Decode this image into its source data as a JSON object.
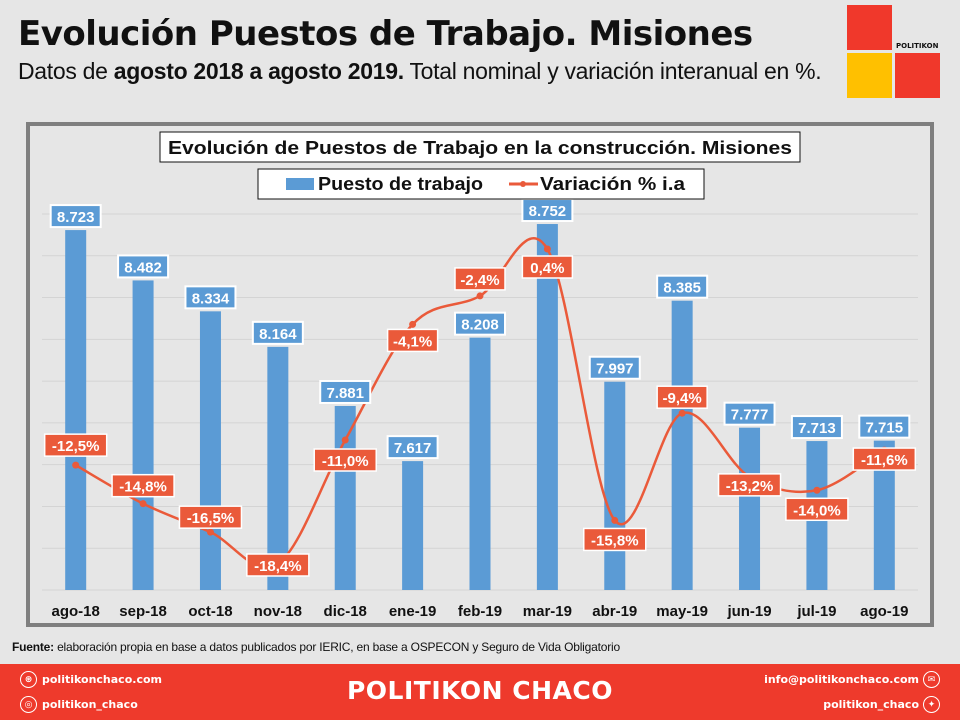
{
  "header": {
    "title": "Evolución Puestos de Trabajo. Misiones",
    "subtitle_parts": [
      {
        "text": "Datos de ",
        "bold": false
      },
      {
        "text": "agosto 2018 a agosto 2019.",
        "bold": true
      },
      {
        "text": " Total nominal y variación interanual en %.",
        "bold": false
      }
    ],
    "logo_text": "POLITIKON",
    "logo_colors": {
      "red": "#f0382b",
      "yellow": "#ffc000"
    }
  },
  "chart_data": {
    "type": "bar",
    "title": "Evolución de Puestos de Trabajo en la construcción. Misiones",
    "xlabel": "",
    "ylabel": "",
    "legend_position": "top-center",
    "grid": true,
    "categories": [
      "ago-18",
      "sep-18",
      "oct-18",
      "nov-18",
      "dic-18",
      "ene-19",
      "feb-19",
      "mar-19",
      "abr-19",
      "may-19",
      "jun-19",
      "jul-19",
      "ago-19"
    ],
    "series": [
      {
        "name": "Puesto de trabajo",
        "type": "bar",
        "color": "#5b9bd5",
        "axis": "left",
        "values": [
          8723,
          8482,
          8334,
          8164,
          7881,
          7617,
          8208,
          8752,
          7997,
          8385,
          7777,
          7713,
          7715
        ],
        "labels": [
          "8.723",
          "8.482",
          "8.334",
          "8.164",
          "7.881",
          "7.617",
          "8.208",
          "8.752",
          "7.997",
          "8.385",
          "7.777",
          "7.713",
          "7.715"
        ]
      },
      {
        "name": "Variación % i.a",
        "type": "line",
        "smooth": true,
        "color": "#ea5a3a",
        "axis": "right",
        "values": [
          -12.5,
          -14.8,
          -16.5,
          -18.4,
          -11.0,
          -4.1,
          -2.4,
          0.4,
          -15.8,
          -9.4,
          -13.2,
          -14.0,
          -11.6
        ],
        "labels": [
          "-12,5%",
          "-14,8%",
          "-16,5%",
          "-18,4%",
          "-11,0%",
          "-4,1%",
          "-2,4%",
          "0,4%",
          "-15,8%",
          "-9,4%",
          "-13,2%",
          "-14,0%",
          "-11,6%"
        ]
      }
    ],
    "ylim_left": [
      7000,
      8800
    ],
    "ylim_right": [
      -20,
      1.5
    ]
  },
  "source": {
    "label": "Fuente:",
    "text": " elaboración propia en base a datos publicados por IERIC, en base a OSPECON y Seguro de Vida Obligatorio"
  },
  "footer": {
    "brand": "POLITIKON CHACO",
    "website": "politikonchaco.com",
    "instagram": "politikon_chaco",
    "email": "info@politikonchaco.com",
    "twitter": "politikon_chaco",
    "bg_color": "#ee3a2c"
  }
}
